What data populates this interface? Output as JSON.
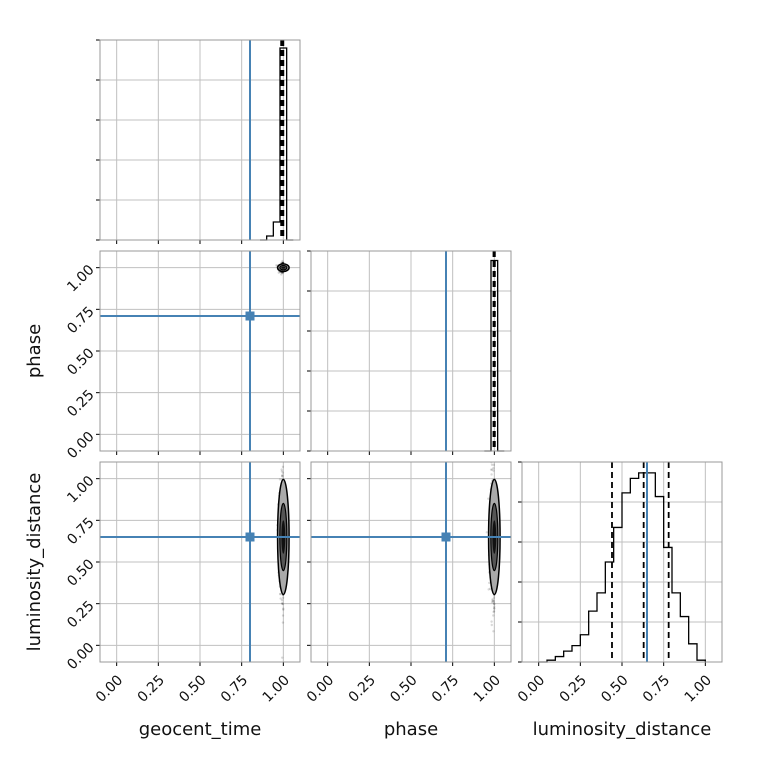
{
  "chart_data": {
    "type": "corner",
    "parameters": [
      "geocent_time",
      "phase",
      "luminosity_distance"
    ],
    "injection": {
      "geocent_time": 0.8,
      "phase": 0.71,
      "luminosity_distance": 0.65
    },
    "colors": {
      "injection": "#4682b4",
      "histogram": "#000000",
      "grid": "#c0c0c0",
      "frame": "#999999"
    },
    "grid": true,
    "tick_labels": [
      "0.00",
      "0.25",
      "0.50",
      "0.75",
      "1.00"
    ],
    "axes": {
      "geocent_time": {
        "xlim": [
          -0.1,
          1.1
        ]
      },
      "phase": {
        "xlim": [
          -0.1,
          1.1
        ]
      },
      "luminosity_distance": {
        "xlim": [
          -0.1,
          1.1
        ]
      }
    },
    "histograms": {
      "geocent_time": {
        "bin_edges": [
          0.86,
          0.9,
          0.94,
          0.98,
          1.02,
          1.06
        ],
        "counts": [
          0,
          2,
          9,
          96,
          0
        ],
        "ylim": [
          0,
          100
        ],
        "quantiles": [
          0.987,
          0.997,
          1.0
        ]
      },
      "phase": {
        "bin_edges": [
          0.94,
          0.98,
          1.02,
          1.06
        ],
        "counts": [
          0,
          100,
          0
        ],
        "ylim": [
          0,
          105
        ],
        "quantiles": [
          0.995,
          1.0,
          1.003
        ]
      },
      "luminosity_distance": {
        "bin_edges": [
          0.0,
          0.05,
          0.1,
          0.15,
          0.2,
          0.25,
          0.3,
          0.35,
          0.4,
          0.45,
          0.5,
          0.55,
          0.6,
          0.65,
          0.7,
          0.75,
          0.8,
          0.85,
          0.9,
          0.95,
          1.0
        ],
        "counts": [
          0,
          1,
          3,
          6,
          9,
          15,
          28,
          38,
          55,
          74,
          93,
          101,
          104,
          104,
          91,
          63,
          38,
          25,
          10,
          1
        ],
        "ylim": [
          0,
          110
        ],
        "quantiles": [
          0.44,
          0.63,
          0.78
        ]
      }
    },
    "scatter_2d": [
      {
        "x": "geocent_time",
        "y": "phase",
        "center": [
          1.0,
          1.0
        ],
        "spread": [
          0.012,
          0.012
        ]
      },
      {
        "x": "geocent_time",
        "y": "luminosity_distance",
        "center": [
          1.0,
          0.65
        ],
        "spread": [
          0.012,
          0.18
        ]
      },
      {
        "x": "phase",
        "y": "luminosity_distance",
        "center": [
          1.0,
          0.65
        ],
        "spread": [
          0.012,
          0.18
        ]
      }
    ]
  },
  "labels": {
    "x_geocent_time": "geocent_time",
    "x_phase": "phase",
    "x_luminosity_distance": "luminosity_distance",
    "y_phase": "phase",
    "y_luminosity_distance": "luminosity_distance"
  }
}
